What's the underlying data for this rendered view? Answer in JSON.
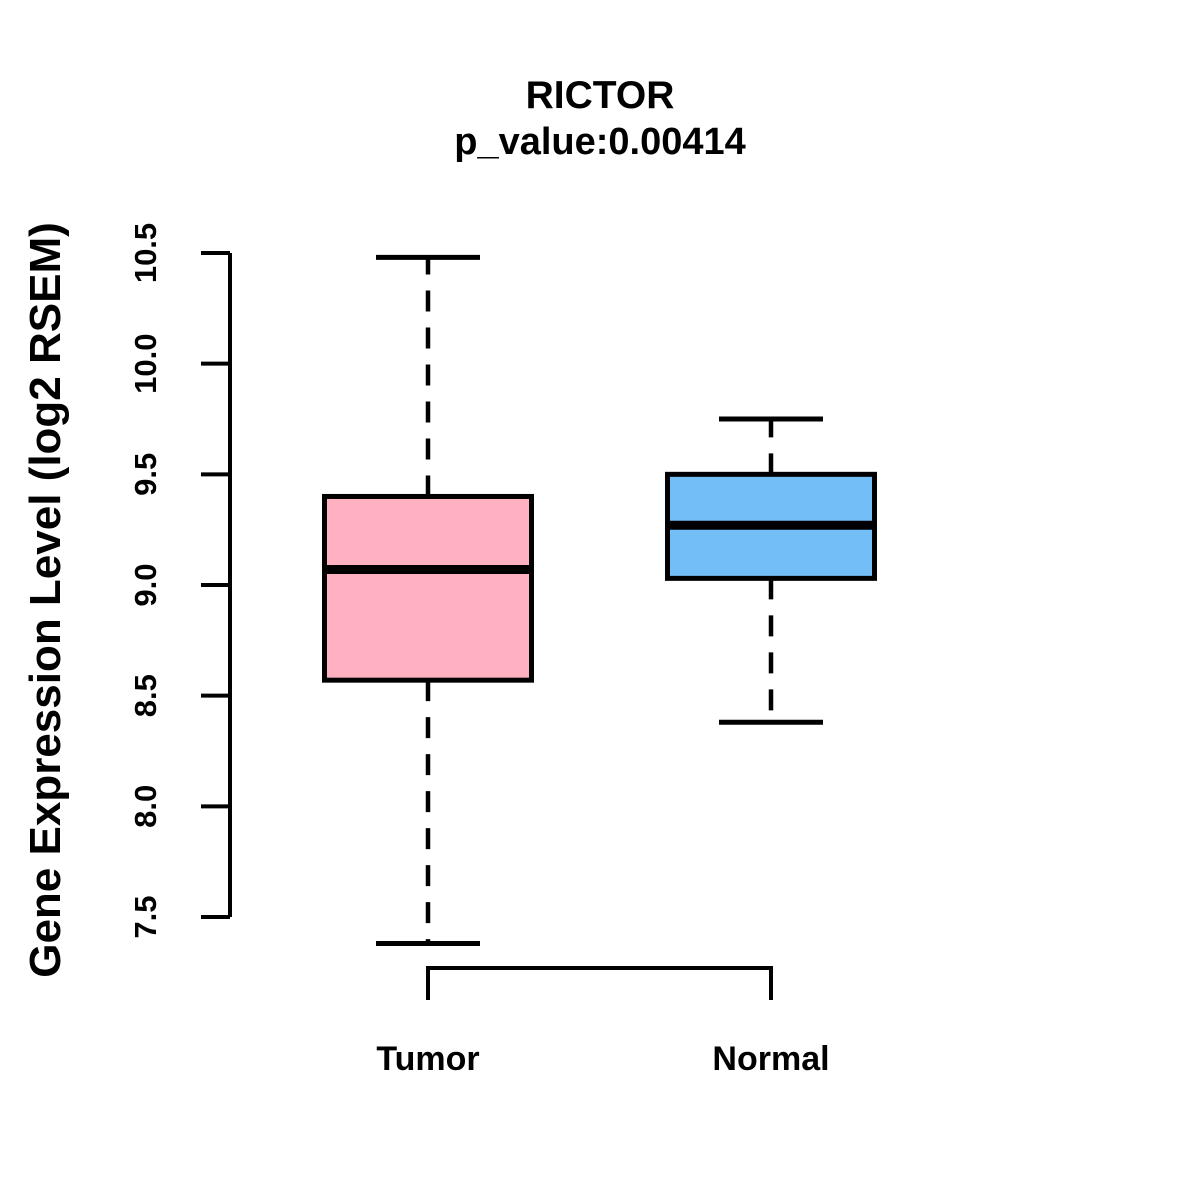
{
  "title": "RICTOR",
  "subtitle": "p_value:0.00414",
  "chart_data": {
    "type": "boxplot",
    "title": "RICTOR",
    "subtitle": "p_value:0.00414",
    "ylabel": "Gene Expression Level (log2 RSEM)",
    "xlabel": "",
    "ylim": [
      7.5,
      10.5
    ],
    "yticks": [
      7.5,
      8.0,
      8.5,
      9.0,
      9.5,
      10.0,
      10.5
    ],
    "grid": false,
    "legend": "none",
    "categories": [
      "Tumor",
      "Normal"
    ],
    "series": [
      {
        "name": "Tumor",
        "color": "#ffb0c1",
        "whisker_low": 7.38,
        "q1": 8.57,
        "median": 9.07,
        "q3": 9.4,
        "whisker_high": 10.48
      },
      {
        "name": "Normal",
        "color": "#74bef8",
        "whisker_low": 8.38,
        "q1": 9.03,
        "median": 9.27,
        "q3": 9.5,
        "whisker_high": 9.75
      }
    ],
    "colors": {
      "axis": "#000000",
      "box_border": "#000000",
      "median_line": "#000000",
      "text": "#000000",
      "background": "#ffffff"
    }
  }
}
